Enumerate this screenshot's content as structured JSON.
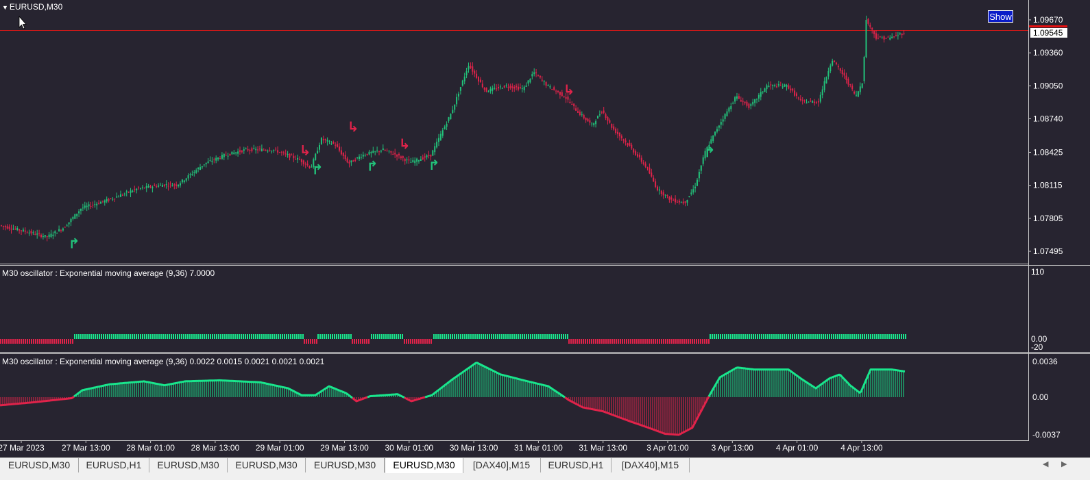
{
  "window": {
    "title": "EURUSD,M30"
  },
  "buttons": {
    "show": "Show"
  },
  "price_axis": {
    "levels": [
      "1.09670",
      "1.09360",
      "1.09050",
      "1.08740",
      "1.08425",
      "1.08115",
      "1.07805",
      "1.07495"
    ],
    "current": "1.09545"
  },
  "indicator1": {
    "label": "M30  oscillator : Exponential moving average (9,36)  7.0000",
    "axis": [
      "110",
      "0.00",
      "-20"
    ]
  },
  "indicator2": {
    "label": "M30  oscillator : Exponential moving average (9,36)  0.0022 0.0015 0.0021 0.0021 0.0021",
    "axis": [
      "0.0036",
      "0.00",
      "-0.0037"
    ]
  },
  "time_axis": [
    "27 Mar 2023",
    "27 Mar 13:00",
    "28 Mar 01:00",
    "28 Mar 13:00",
    "29 Mar 01:00",
    "29 Mar 13:00",
    "30 Mar 01:00",
    "30 Mar 13:00",
    "31 Mar 01:00",
    "31 Mar 13:00",
    "3 Apr 01:00",
    "3 Apr 13:00",
    "4 Apr 01:00",
    "4 Apr 13:00"
  ],
  "tabs": [
    {
      "label": "EURUSD,M30",
      "active": false
    },
    {
      "label": "EURUSD,H1",
      "active": false
    },
    {
      "label": "EURUSD,M30",
      "active": false
    },
    {
      "label": "EURUSD,M30",
      "active": false
    },
    {
      "label": "EURUSD,M30",
      "active": false
    },
    {
      "label": "EURUSD,M30",
      "active": true
    },
    {
      "label": "[DAX40],M15",
      "active": false
    },
    {
      "label": "EURUSD,H1",
      "active": false
    },
    {
      "label": "[DAX40],M15",
      "active": false
    }
  ],
  "colors": {
    "background": "#272430",
    "bull": "#22c27a",
    "bear": "#e0234a",
    "osc_green": "#19e58c",
    "osc_red": "#e0234a",
    "price_line": "#d01818"
  },
  "chart_data": {
    "type": "candlestick",
    "price_keypoints": [
      [
        0,
        1.0774
      ],
      [
        40,
        1.0768
      ],
      [
        70,
        1.0763
      ],
      [
        95,
        1.0772
      ],
      [
        120,
        1.079
      ],
      [
        160,
        1.0798
      ],
      [
        200,
        1.0808
      ],
      [
        240,
        1.0812
      ],
      [
        260,
        1.0812
      ],
      [
        300,
        1.0832
      ],
      [
        330,
        1.084
      ],
      [
        360,
        1.0845
      ],
      [
        400,
        1.0845
      ],
      [
        440,
        1.0835
      ],
      [
        455,
        1.0828
      ],
      [
        470,
        1.0855
      ],
      [
        490,
        1.085
      ],
      [
        510,
        1.0832
      ],
      [
        530,
        1.084
      ],
      [
        560,
        1.0845
      ],
      [
        580,
        1.084
      ],
      [
        600,
        1.0833
      ],
      [
        630,
        1.084
      ],
      [
        660,
        1.088
      ],
      [
        685,
        1.0925
      ],
      [
        710,
        1.09
      ],
      [
        740,
        1.0905
      ],
      [
        765,
        1.0902
      ],
      [
        780,
        1.0918
      ],
      [
        800,
        1.0905
      ],
      [
        825,
        1.0895
      ],
      [
        845,
        1.088
      ],
      [
        865,
        1.0868
      ],
      [
        880,
        1.0882
      ],
      [
        895,
        1.0865
      ],
      [
        920,
        1.0848
      ],
      [
        945,
        1.0828
      ],
      [
        960,
        1.0808
      ],
      [
        980,
        1.0798
      ],
      [
        1000,
        1.0795
      ],
      [
        1015,
        1.081
      ],
      [
        1030,
        1.0843
      ],
      [
        1050,
        1.0868
      ],
      [
        1075,
        1.0895
      ],
      [
        1095,
        1.0885
      ],
      [
        1120,
        1.0905
      ],
      [
        1150,
        1.0905
      ],
      [
        1170,
        1.089
      ],
      [
        1195,
        1.089
      ],
      [
        1215,
        1.093
      ],
      [
        1235,
        1.0912
      ],
      [
        1250,
        1.0895
      ],
      [
        1260,
        1.091
      ],
      [
        1265,
        1.0967
      ],
      [
        1280,
        1.095
      ],
      [
        1300,
        1.095
      ],
      [
        1320,
        1.0955
      ]
    ],
    "up_arrows": [
      [
        108,
        1.07525
      ],
      [
        463,
        1.0822
      ],
      [
        543,
        1.0825
      ],
      [
        633,
        1.0826
      ],
      [
        1035,
        1.0838
      ]
    ],
    "down_arrows": [
      [
        445,
        1.084
      ],
      [
        515,
        1.0862
      ],
      [
        590,
        1.0846
      ],
      [
        830,
        1.0897
      ]
    ],
    "signal_segments": [
      {
        "from": 0,
        "to": 105,
        "dir": "down"
      },
      {
        "from": 108,
        "to": 441,
        "dir": "up"
      },
      {
        "from": 443,
        "to": 461,
        "dir": "down"
      },
      {
        "from": 463,
        "to": 511,
        "dir": "up"
      },
      {
        "from": 513,
        "to": 539,
        "dir": "down"
      },
      {
        "from": 541,
        "to": 587,
        "dir": "up"
      },
      {
        "from": 589,
        "to": 630,
        "dir": "down"
      },
      {
        "from": 632,
        "to": 827,
        "dir": "up"
      },
      {
        "from": 829,
        "to": 1033,
        "dir": "down"
      },
      {
        "from": 1035,
        "to": 1320,
        "dir": "up"
      }
    ],
    "oscillator_keypoints": [
      [
        0,
        -0.0008
      ],
      [
        50,
        -0.0005
      ],
      [
        105,
        -0.0001
      ],
      [
        120,
        0.0007
      ],
      [
        160,
        0.0013
      ],
      [
        210,
        0.0016
      ],
      [
        240,
        0.0012
      ],
      [
        270,
        0.0016
      ],
      [
        320,
        0.0017
      ],
      [
        380,
        0.0015
      ],
      [
        420,
        0.0009
      ],
      [
        440,
        0.0002
      ],
      [
        460,
        0.0002
      ],
      [
        480,
        0.0011
      ],
      [
        505,
        0.0004
      ],
      [
        520,
        -0.0004
      ],
      [
        540,
        0.0001
      ],
      [
        580,
        0.0003
      ],
      [
        600,
        -0.0004
      ],
      [
        630,
        0.0002
      ],
      [
        660,
        0.0018
      ],
      [
        695,
        0.0035
      ],
      [
        730,
        0.0023
      ],
      [
        770,
        0.0016
      ],
      [
        800,
        0.0011
      ],
      [
        830,
        -0.0003
      ],
      [
        850,
        -0.001
      ],
      [
        880,
        -0.0014
      ],
      [
        920,
        -0.0024
      ],
      [
        950,
        -0.0031
      ],
      [
        970,
        -0.0036
      ],
      [
        990,
        -0.0037
      ],
      [
        1010,
        -0.003
      ],
      [
        1035,
        0.0002
      ],
      [
        1050,
        0.002
      ],
      [
        1075,
        0.003
      ],
      [
        1100,
        0.0028
      ],
      [
        1150,
        0.0028
      ],
      [
        1170,
        0.0018
      ],
      [
        1190,
        0.0009
      ],
      [
        1210,
        0.0019
      ],
      [
        1225,
        0.0023
      ],
      [
        1240,
        0.0012
      ],
      [
        1255,
        0.0004
      ],
      [
        1270,
        0.0028
      ],
      [
        1300,
        0.0028
      ],
      [
        1320,
        0.0026
      ]
    ],
    "price_range": [
      1.0745,
      1.0988
    ],
    "oscillator_range": [
      -0.0037,
      0.0036
    ]
  }
}
